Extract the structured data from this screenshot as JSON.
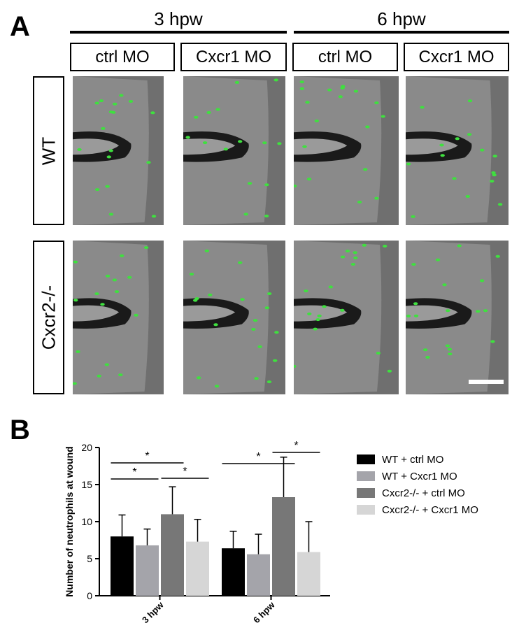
{
  "figure": {
    "panel_a_label": "A",
    "panel_b_label": "B",
    "time_groups": [
      "3 hpw",
      "6 hpw"
    ],
    "columns": [
      "ctrl MO",
      "Cxcr1 MO",
      "ctrl MO",
      "Cxcr1 MO"
    ],
    "rows": [
      "WT",
      "Cxcr2-/-"
    ]
  },
  "chart_data": {
    "type": "bar",
    "ylabel": "Number of neutrophils at wound",
    "ylim": [
      0,
      20
    ],
    "yticks": [
      0,
      5,
      10,
      15,
      20
    ],
    "categories": [
      "3 hpw",
      "6 hpw"
    ],
    "legend_position": "right",
    "series": [
      {
        "name": "WT + ctrl MO",
        "color": "#000000",
        "values": [
          8.0,
          6.4
        ],
        "errors": [
          2.9,
          2.3
        ]
      },
      {
        "name": "WT + Cxcr1 MO",
        "color": "#a4a4aa",
        "values": [
          6.8,
          5.6
        ],
        "errors": [
          2.2,
          2.7
        ]
      },
      {
        "name": "Cxcr2-/- + ctrl MO",
        "color": "#777777",
        "values": [
          11.0,
          13.3
        ],
        "errors": [
          3.7,
          5.4
        ]
      },
      {
        "name": "Cxcr2-/- + Cxcr1 MO",
        "color": "#d6d6d6",
        "values": [
          7.3,
          5.9
        ],
        "errors": [
          3.0,
          4.1
        ]
      }
    ],
    "significance": [
      {
        "category": "3 hpw",
        "between": [
          0,
          1
        ],
        "label": "*"
      },
      {
        "category": "3 hpw",
        "between": [
          0,
          2
        ],
        "label": "*"
      },
      {
        "category": "3 hpw",
        "between": [
          2,
          3
        ],
        "label": "*"
      },
      {
        "category": "6 hpw",
        "between": [
          0,
          2
        ],
        "label": "*"
      },
      {
        "category": "6 hpw",
        "between": [
          2,
          3
        ],
        "label": "*"
      }
    ]
  }
}
